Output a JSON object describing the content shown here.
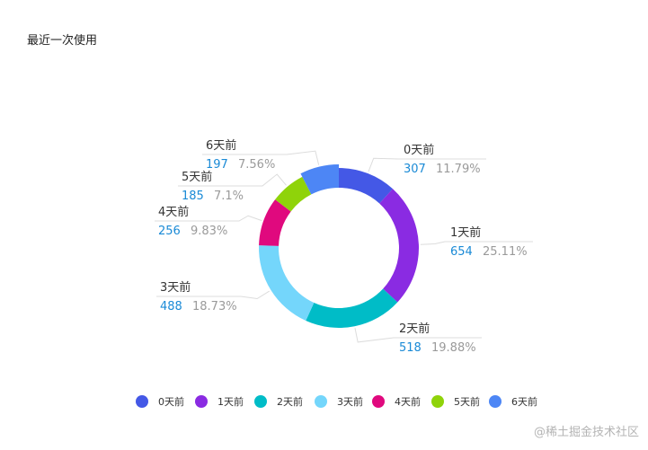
{
  "title": "最近一次使用",
  "watermark": "@稀土掘金技术社区",
  "chart_data": {
    "type": "pie",
    "donut": true,
    "title": "最近一次使用",
    "legend_position": "bottom",
    "categories": [
      "0天前",
      "1天前",
      "2天前",
      "3天前",
      "4天前",
      "5天前",
      "6天前"
    ],
    "values": [
      307,
      654,
      518,
      488,
      256,
      185,
      197
    ],
    "percents": [
      "11.79%",
      "25.11%",
      "19.88%",
      "18.73%",
      "9.83%",
      "7.1%",
      "7.56%"
    ],
    "colors": [
      "#4458e6",
      "#8a2be2",
      "#00bcc7",
      "#74d6fb",
      "#e0097e",
      "#8fd30a",
      "#4d86f5"
    ]
  }
}
